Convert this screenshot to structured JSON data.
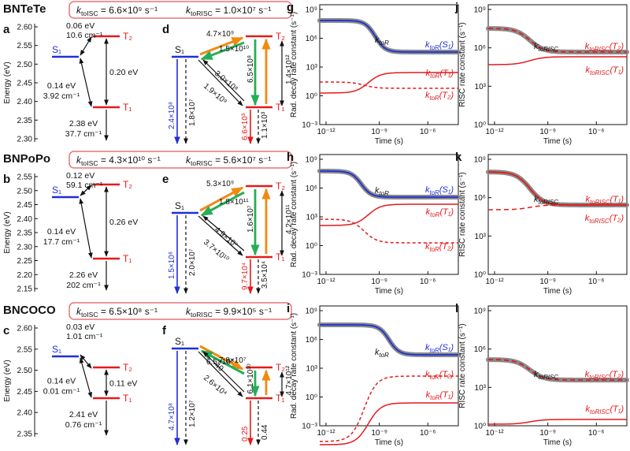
{
  "colors": {
    "s1": "#1f2fd6",
    "t": "#e31a1c",
    "orange": "#f08a10",
    "green": "#27ad5a",
    "gray": "#8a8a8a",
    "box": "#e8737a"
  },
  "molecules": [
    {
      "name": "BNTeTe",
      "rates_box": {
        "kisc_text": "k_toISC = 6.6×10⁹ s⁻¹",
        "krisc_text": "k_toRISC = 1.0×10⁷ s⁻¹"
      },
      "energy_panel": {
        "label": "a",
        "ylabel": "Energy (eV)",
        "yticks": [
          "2.60",
          "2.55",
          "2.50",
          "2.45",
          "2.40",
          "2.35",
          "2.30"
        ],
        "states": {
          "S1": "S₁",
          "T1": "T₁",
          "T2": "T₂"
        },
        "ann": {
          "s1t2_gap": "0.06 eV",
          "s1t2_soc": "10.6 cm⁻¹",
          "s1t1_gap": "0.14 eV",
          "s1t1_soc": "3.92 cm⁻¹",
          "t2t1_gap": "0.20 eV",
          "t1_energy": "2.38 eV",
          "t1_soc": "37.7 cm⁻¹"
        }
      },
      "rate_panel": {
        "label": "d",
        "states": {
          "S1": "S₁",
          "T1": "T₁",
          "T2": "T₂"
        },
        "r": {
          "s1_t2_orange": "4.7×10⁹",
          "t2_s1_green": "1.5×10¹⁰",
          "s1_t1": "1.9×10⁹",
          "t1_s1": "3.0×10⁸",
          "t2_t1": "6.5×10⁸",
          "t1_t2": "1.4×10¹²",
          "s1_rad": "2.4×10⁸",
          "s1_nr": "1.8×10⁷",
          "t1_rad": "6.6×10³",
          "t1_nr": "1.1×10³"
        }
      },
      "rad_panel": {
        "label": "g",
        "ylabel": "Rad. decay rate constant (s⁻¹)",
        "xlabel": "Time (s)",
        "xticks": [
          "10⁻¹²",
          "10⁻⁹",
          "10⁻⁶"
        ],
        "yticks": [
          "10⁹",
          "10⁶",
          "10³",
          "10⁰",
          "10⁻³"
        ],
        "ann": {
          "ktoR": "k_toR",
          "s1": "k_toR(S₁)",
          "t1": "k_toR(T₁)",
          "t2": "k_toR(T₂)"
        }
      },
      "risc_panel": {
        "label": "j",
        "ylabel": "RISC rate constant (s⁻¹)",
        "xlabel": "Time (s)",
        "xticks": [
          "10⁻¹²",
          "10⁻⁹",
          "10⁻⁶"
        ],
        "yticks": [
          "10⁹",
          "10⁶",
          "10³",
          "10⁰"
        ],
        "ann": {
          "ktoRISC": "k_toRISC",
          "t2": "k_toRISC(T₂)",
          "t1": "k_toRISC(T₁)"
        }
      }
    },
    {
      "name": "BNPoPo",
      "rates_box": {
        "kisc_text": "k_toISC = 4.3×10¹⁰ s⁻¹",
        "krisc_text": "k_toRISC = 5.6×10⁷ s⁻¹"
      },
      "energy_panel": {
        "label": "b",
        "ylabel": "Energy (eV)",
        "yticks": [
          "2.55",
          "2.50",
          "2.45",
          "2.40",
          "2.35",
          "2.30",
          "2.25",
          "2.20",
          "2.15"
        ],
        "states": {
          "S1": "S₁",
          "T1": "T₁",
          "T2": "T₂"
        },
        "ann": {
          "s1t2_gap": "0.12 eV",
          "s1t2_soc": "59.1 cm⁻¹",
          "s1t1_gap": "0.14 eV",
          "s1t1_soc": "17.7 cm⁻¹",
          "t2t1_gap": "0.26 eV",
          "t1_energy": "2.26 eV",
          "t1_soc": "202 cm⁻¹"
        }
      },
      "rate_panel": {
        "label": "e",
        "states": {
          "S1": "S₁",
          "T1": "T₁",
          "T2": "T₂"
        },
        "r": {
          "s1_t2_orange": "5.3×10⁹",
          "t2_s1_green": "1.8×10¹¹",
          "s1_t1": "3.7×10¹⁰",
          "t1_s1": "4.9×10⁷",
          "t2_t1": "1.6×10⁷",
          "t1_t2": "4.2×10¹¹",
          "s1_rad": "1.5×10⁸",
          "s1_nr": "2.0×10⁷",
          "t1_rad": "9.7×10⁴",
          "t1_nr": "3.5×10⁴"
        }
      },
      "rad_panel": {
        "label": "h",
        "ylabel": "Rad. decay rate constant (s⁻¹)",
        "xlabel": "Time (s)",
        "xticks": [
          "10⁻¹²",
          "10⁻⁹",
          "10⁻⁶"
        ],
        "yticks": [
          "10⁹",
          "10⁶",
          "10³",
          "10⁰",
          "10⁻³"
        ],
        "ann": {
          "ktoR": "k_toR",
          "s1": "k_toR(S₁)",
          "t1": "k_toR(T₁)",
          "t2": "k_toR(T₂)"
        }
      },
      "risc_panel": {
        "label": "k",
        "ylabel": "RISC rate constant (s⁻¹)",
        "xlabel": "Time (s)",
        "xticks": [
          "10⁻¹²",
          "10⁻⁹",
          "10⁻⁶"
        ],
        "yticks": [
          "10⁹",
          "10⁶",
          "10³",
          "10⁰"
        ],
        "ann": {
          "ktoRISC": "k_toRISC",
          "t1": "k_toRISC(T₁)",
          "t2": "k_toRISC(T₂)"
        }
      }
    },
    {
      "name": "BNCOCO",
      "rates_box": {
        "kisc_text": "k_toISC = 6.5×10⁸ s⁻¹",
        "krisc_text": "k_toRISC = 9.9×10⁵ s⁻¹"
      },
      "energy_panel": {
        "label": "c",
        "ylabel": "Energy (eV)",
        "yticks": [
          "2.60",
          "2.55",
          "2.50",
          "2.45",
          "2.40",
          "2.35"
        ],
        "states": {
          "S1": "S₁",
          "T1": "T₁",
          "T2": "T₂"
        },
        "ann": {
          "s1t2_gap": "0.03 eV",
          "s1t2_soc": "1.01 cm⁻¹",
          "s1t1_gap": "0.14 eV",
          "s1t1_soc": "0.01 cm⁻¹",
          "t2t1_gap": "0.11 eV",
          "t1_energy": "2.41 eV",
          "t1_soc": "0.76 cm⁻¹"
        }
      },
      "rate_panel": {
        "label": "f",
        "states": {
          "S1": "S₁",
          "T1": "T₁",
          "T2": "T₂"
        },
        "r": {
          "s1_t2_orange": "6.5×10⁸",
          "t2_s1_green": "7.8×10⁷",
          "s1_t1": "2.6×10⁴",
          "t1_s1": "40",
          "t2_t1": "6.1×10¹⁰",
          "t1_t2": "4.7×10¹²",
          "s1_rad": "4.7×10⁸",
          "s1_nr": "1.2×10⁷",
          "t1_rad": "0.25",
          "t1_nr": "0.44"
        }
      },
      "rad_panel": {
        "label": "i",
        "ylabel": "Rad. decay rate constant (s⁻¹)",
        "xlabel": "Time (s)",
        "xticks": [
          "10⁻¹²",
          "10⁻⁹",
          "10⁻⁶"
        ],
        "yticks": [
          "10⁹",
          "10⁶",
          "10³",
          "10⁰",
          "10⁻³"
        ],
        "ann": {
          "ktoR": "k_toR",
          "s1": "k_toR(S₁)",
          "t2": "k_toR(T₂)",
          "t1": "k_toR(T₁)"
        }
      },
      "risc_panel": {
        "label": "l",
        "ylabel": "RISC rate constant (s⁻¹)",
        "xlabel": "Time (s)",
        "xticks": [
          "10⁻¹²",
          "10⁻⁹",
          "10⁻⁶"
        ],
        "yticks": [
          "10⁹",
          "10⁶",
          "10³",
          "10⁰"
        ],
        "ann": {
          "ktoRISC": "k_toRISC",
          "t2": "k_toRISC(T₂)",
          "t1": "k_toRISC(T₁)"
        }
      }
    }
  ]
}
